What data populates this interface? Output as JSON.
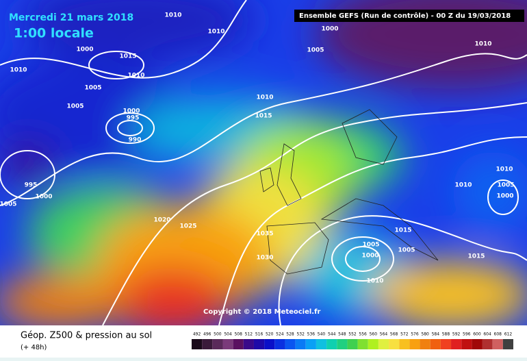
{
  "header": {
    "date": "Mercredi 21 mars 2018",
    "time": "1:00 locale",
    "run": "Ensemble GEFS  (Run de contrôle)  -  00 Z du 19/03/2018"
  },
  "isobar_labels": [
    1010,
    1010,
    1000,
    1015,
    1010,
    1010,
    1005,
    1005,
    1000,
    995,
    990,
    995,
    1000,
    1005,
    1010,
    1015,
    1020,
    1025,
    1035,
    1030,
    1000,
    1005,
    1010,
    1010,
    1010,
    1005,
    1000,
    1015,
    1005,
    1000,
    1005,
    1015,
    1010
  ],
  "copyright": "Copyright © 2018 Meteociel.fr",
  "footer": {
    "title": "Géop. Z500 & pression au sol",
    "lead": "(+ 48h)"
  },
  "colorbar": {
    "values": [
      492,
      496,
      500,
      504,
      508,
      512,
      516,
      520,
      524,
      528,
      532,
      536,
      540,
      544,
      548,
      552,
      556,
      560,
      564,
      568,
      572,
      576,
      580,
      584,
      588,
      592,
      596,
      600,
      604,
      608,
      612
    ],
    "colors": [
      "#1a0a1a",
      "#3a1a3a",
      "#5a2a5a",
      "#7a3a7a",
      "#5a1060",
      "#3a0a8a",
      "#1e0aa8",
      "#0a10c8",
      "#0a30e0",
      "#0a55f0",
      "#0a7af5",
      "#0aa0f5",
      "#10c0e0",
      "#10d0b0",
      "#20d080",
      "#40d050",
      "#80e030",
      "#b0f020",
      "#e0f040",
      "#f8e040",
      "#f8c020",
      "#f8a010",
      "#f08010",
      "#f06010",
      "#f04020",
      "#e02020",
      "#c01010",
      "#a00808",
      "#b03030",
      "#d06060",
      "#404040"
    ]
  }
}
